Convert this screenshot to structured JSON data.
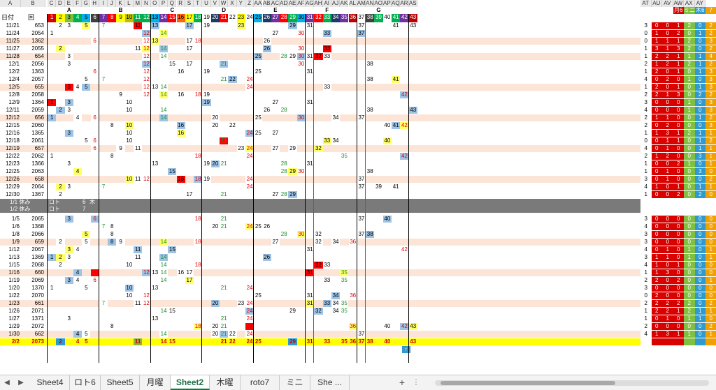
{
  "col_letters": [
    "A",
    "B",
    "C",
    "D",
    "E",
    "F",
    "G",
    "H",
    "I",
    "J",
    "K",
    "L",
    "M",
    "N",
    "O",
    "P",
    "Q",
    "R",
    "S",
    "T",
    "U",
    "V",
    "W",
    "X",
    "Y",
    "Z",
    "AA",
    "AB",
    "AC",
    "AD",
    "AE",
    "AF",
    "AG",
    "AH",
    "AI",
    "AJ",
    "AK",
    "AL",
    "AM",
    "AN",
    "AO",
    "AP",
    "AQ",
    "AR",
    "AS",
    "AT",
    "AU",
    "AV",
    "AW",
    "AX",
    "AY"
  ],
  "group_labels": [
    "A",
    "B",
    "C",
    "D",
    "E",
    "F",
    "G"
  ],
  "right_headers": [
    "月6",
    "ミニ",
    "木6",
    "7"
  ],
  "header_row": {
    "date": "日付",
    "kai": "回"
  },
  "top_numbers": [
    "1",
    "2",
    "3",
    "4",
    "5",
    "6",
    "7",
    "8",
    "9",
    "10",
    "11",
    "12",
    "13",
    "14",
    "15",
    "16",
    "17",
    "18",
    "19",
    "20",
    "21",
    "22",
    "23",
    "24",
    "25",
    "26",
    "27",
    "28",
    "29",
    "30",
    "31",
    "32",
    "33",
    "34",
    "35",
    "36",
    "37",
    "38",
    "39",
    "40",
    "41",
    "42",
    "43"
  ],
  "top_colors": [
    "#d90000",
    "#ffff00",
    "#80c040",
    "#00b050",
    "#00b0f0",
    "#404040",
    "#7030a0",
    "#ff0000",
    "#ffff00",
    "#c0c000",
    "#00b050",
    "#00b050",
    "#00b0f0",
    "#7030a0",
    "#ff0000",
    "#ff6600",
    "#ffff00",
    "#00b050",
    "#ffffff",
    "#1f3864",
    "#ff0000",
    "#ffffff",
    "#ffff00",
    "#ffffff",
    "#00b0f0",
    "#1f3864",
    "#7030a0",
    "#ff0000",
    "#00b050",
    "#00b0f0",
    "#7030a0",
    "#ff0000",
    "#00b050",
    "#1f3864",
    "#7030a0",
    "#c00000",
    "#ffffff",
    "#404040",
    "#00b050",
    "#ffffff",
    "#00b050",
    "#7030a0",
    "#c00000"
  ],
  "rows": [
    {
      "date": "11/21",
      "kai": "653",
      "nums": [
        "2",
        "3",
        "5",
        "7",
        "11",
        "13",
        "17",
        "19",
        "23",
        "29",
        "31",
        "37",
        "41",
        "43"
      ],
      "band": false,
      "totals": [
        "3",
        "0",
        "0",
        "1",
        "2",
        "0",
        "2"
      ]
    },
    {
      "date": "11/24",
      "kai": "2054",
      "nums": [
        "1",
        "12",
        "14",
        "27",
        "30",
        "33",
        "37"
      ],
      "band": false,
      "totals": [
        "0",
        "1",
        "0",
        "2",
        "0",
        "1",
        "2"
      ]
    },
    {
      "date": "11/25",
      "kai": "1362",
      "nums": [
        "6",
        "12",
        "13",
        "17",
        "18",
        "26"
      ],
      "band": true,
      "totals": [
        "0",
        "1",
        "1",
        "1",
        "2",
        "0",
        "3"
      ]
    },
    {
      "date": "11/27",
      "kai": "2055",
      "nums": [
        "2",
        "11",
        "12",
        "14",
        "17",
        "26",
        "30",
        "33"
      ],
      "band": false,
      "totals": [
        "1",
        "3",
        "1",
        "3",
        "2",
        "0",
        "2"
      ]
    },
    {
      "date": "11/28",
      "kai": "654",
      "nums": [
        "3",
        "12",
        "14",
        "25",
        "28",
        "29",
        "30",
        "31",
        "32",
        "33"
      ],
      "band": true,
      "totals": [
        "1",
        "2",
        "2",
        "1",
        "1",
        "1",
        "4"
      ]
    },
    {
      "date": "12/1",
      "kai": "2056",
      "nums": [
        "3",
        "12",
        "15",
        "17",
        "21",
        "30",
        "38"
      ],
      "band": false,
      "totals": [
        "2",
        "1",
        "2",
        "1",
        "2",
        "1",
        "2"
      ]
    },
    {
      "date": "12/2",
      "kai": "1363",
      "nums": [
        "6",
        "12",
        "16",
        "19",
        "25",
        "31"
      ],
      "band": false,
      "totals": [
        "1",
        "2",
        "0",
        "1",
        "0",
        "1",
        "3"
      ]
    },
    {
      "date": "12/4",
      "kai": "2057",
      "nums": [
        "5",
        "7",
        "12",
        "21",
        "22",
        "24",
        "38",
        "41"
      ],
      "band": false,
      "totals": [
        "4",
        "0",
        "2",
        "0",
        "1",
        "0",
        "3"
      ]
    },
    {
      "date": "12/5",
      "kai": "655",
      "nums": [
        "3",
        "4",
        "5",
        "12",
        "13",
        "14",
        "24",
        "33"
      ],
      "band": true,
      "totals": [
        "1",
        "2",
        "0",
        "1",
        "0",
        "1",
        "3"
      ]
    },
    {
      "date": "12/8",
      "kai": "2058",
      "nums": [
        "9",
        "12",
        "14",
        "16",
        "18",
        "19",
        "42"
      ],
      "band": false,
      "totals": [
        "2",
        "2",
        "1",
        "3",
        "0",
        "2",
        "2"
      ]
    },
    {
      "date": "12/9",
      "kai": "1364",
      "nums": [
        "1",
        "3",
        "10",
        "19",
        "27",
        "31"
      ],
      "band": false,
      "totals": [
        "3",
        "0",
        "0",
        "0",
        "1",
        "0",
        "3"
      ]
    },
    {
      "date": "12/11",
      "kai": "2059",
      "nums": [
        "2",
        "3",
        "10",
        "14",
        "26",
        "28",
        "38",
        "43"
      ],
      "band": false,
      "totals": [
        "4",
        "0",
        "0",
        "0",
        "1",
        "0",
        "3"
      ]
    },
    {
      "date": "12/12",
      "kai": "656",
      "nums": [
        "1",
        "4",
        "6",
        "14",
        "20",
        "25",
        "30",
        "34",
        "37"
      ],
      "band": true,
      "totals": [
        "2",
        "1",
        "1",
        "0",
        "0",
        "1",
        "2"
      ]
    },
    {
      "date": "12/15",
      "kai": "2060",
      "nums": [
        "8",
        "10",
        "16",
        "20",
        "22",
        "40",
        "41",
        "42"
      ],
      "band": false,
      "totals": [
        "2",
        "0",
        "2",
        "0",
        "0",
        "0",
        "3"
      ]
    },
    {
      "date": "12/16",
      "kai": "1365",
      "nums": [
        "3",
        "10",
        "16",
        "24",
        "25",
        "27"
      ],
      "band": false,
      "totals": [
        "1",
        "1",
        "3",
        "1",
        "2",
        "1",
        "1"
      ]
    },
    {
      "date": "12/18",
      "kai": "2061",
      "nums": [
        "5",
        "6",
        "10",
        "21",
        "33",
        "34",
        "40"
      ],
      "band": false,
      "totals": [
        "0",
        "0",
        "1",
        "1",
        "0",
        "1",
        "2"
      ]
    },
    {
      "date": "12/19",
      "kai": "657",
      "nums": [
        "6",
        "9",
        "11",
        "23",
        "24",
        "27",
        "29",
        "32"
      ],
      "band": true,
      "totals": [
        "4",
        "0",
        "1",
        "0",
        "0",
        "1",
        "1"
      ]
    },
    {
      "date": "12/22",
      "kai": "2062",
      "nums": [
        "1",
        "8",
        "18",
        "24",
        "35",
        "42"
      ],
      "band": false,
      "totals": [
        "2",
        "1",
        "2",
        "0",
        "0",
        "3",
        "1"
      ]
    },
    {
      "date": "12/23",
      "kai": "1366",
      "nums": [
        "3",
        "13",
        "19",
        "20",
        "21",
        "28",
        "31"
      ],
      "band": false,
      "totals": [
        "1",
        "0",
        "0",
        "2",
        "1",
        "0",
        "1"
      ]
    },
    {
      "date": "12/25",
      "kai": "2063",
      "nums": [
        "4",
        "15",
        "28",
        "29",
        "30",
        "38"
      ],
      "band": false,
      "totals": [
        "1",
        "0",
        "1",
        "0",
        "0",
        "3",
        "0"
      ]
    },
    {
      "date": "12/26",
      "kai": "658",
      "nums": [
        "10",
        "11",
        "12",
        "16",
        "18",
        "19",
        "24",
        "37"
      ],
      "band": true,
      "totals": [
        "3",
        "0",
        "1",
        "0",
        "0",
        "0",
        "2"
      ]
    },
    {
      "date": "12/29",
      "kai": "2064",
      "nums": [
        "2",
        "3",
        "7",
        "24",
        "37",
        "39",
        "41"
      ],
      "band": false,
      "totals": [
        "4",
        "1",
        "0",
        "1",
        "0",
        "1",
        "1"
      ]
    },
    {
      "date": "12/30",
      "kai": "1367",
      "nums": [
        "2",
        "17",
        "21",
        "27",
        "28",
        "29"
      ],
      "band": false,
      "totals": [
        "1",
        "0",
        "0",
        "2",
        "0",
        "2",
        "0"
      ]
    },
    {
      "date": "1/5",
      "kai": "2065",
      "nums": [
        "3",
        "6",
        "18",
        "21",
        "37",
        "40"
      ],
      "band": false,
      "totals": [
        "3",
        "0",
        "0",
        "0",
        "0",
        "0",
        "0"
      ]
    },
    {
      "date": "1/6",
      "kai": "1368",
      "nums": [
        "7",
        "8",
        "20",
        "21",
        "24",
        "25",
        "26"
      ],
      "band": false,
      "totals": [
        "4",
        "0",
        "0",
        "0",
        "0",
        "0",
        "0"
      ]
    },
    {
      "date": "1/8",
      "kai": "2066",
      "nums": [
        "5",
        "8",
        "28",
        "30",
        "32",
        "37",
        "38"
      ],
      "band": false,
      "totals": [
        "3",
        "0",
        "0",
        "0",
        "0",
        "0",
        "0"
      ]
    },
    {
      "date": "1/9",
      "kai": "659",
      "nums": [
        "2",
        "5",
        "8",
        "9",
        "14",
        "18",
        "27",
        "32",
        "34",
        "36"
      ],
      "band": true,
      "totals": [
        "3",
        "0",
        "0",
        "0",
        "0",
        "0",
        "0"
      ]
    },
    {
      "date": "1/12",
      "kai": "2067",
      "nums": [
        "3",
        "4",
        "11",
        "15",
        "31",
        "42"
      ],
      "band": false,
      "totals": [
        "4",
        "0",
        "1",
        "0",
        "1",
        "0",
        "1"
      ]
    },
    {
      "date": "1/13",
      "kai": "1369",
      "nums": [
        "1",
        "2",
        "3",
        "11",
        "14",
        "26"
      ],
      "band": false,
      "totals": [
        "3",
        "1",
        "1",
        "0",
        "1",
        "0",
        "1"
      ]
    },
    {
      "date": "1/15",
      "kai": "2068",
      "nums": [
        "2",
        "10",
        "14",
        "18",
        "32",
        "33"
      ],
      "band": false,
      "totals": [
        "4",
        "1",
        "0",
        "1",
        "0",
        "0",
        "0"
      ]
    },
    {
      "date": "1/16",
      "kai": "660",
      "nums": [
        "4",
        "6",
        "12",
        "13",
        "14",
        "16",
        "17",
        "31",
        "35"
      ],
      "band": true,
      "totals": [
        "1",
        "1",
        "3",
        "0",
        "0",
        "0",
        "0"
      ]
    },
    {
      "date": "1/19",
      "kai": "2069",
      "nums": [
        "3",
        "4",
        "6",
        "14",
        "17",
        "33",
        "35"
      ],
      "band": false,
      "totals": [
        "2",
        "2",
        "0",
        "2",
        "0",
        "0",
        "1"
      ]
    },
    {
      "date": "1/20",
      "kai": "1370",
      "nums": [
        "1",
        "5",
        "10",
        "13",
        "21",
        "24"
      ],
      "band": false,
      "totals": [
        "3",
        "0",
        "0",
        "0",
        "0",
        "0",
        "0"
      ]
    },
    {
      "date": "1/22",
      "kai": "2070",
      "nums": [
        "10",
        "12",
        "25",
        "31",
        "34",
        "36"
      ],
      "band": false,
      "totals": [
        "0",
        "2",
        "0",
        "0",
        "0",
        "0",
        "0"
      ]
    },
    {
      "date": "1/23",
      "kai": "661",
      "nums": [
        "7",
        "11",
        "12",
        "20",
        "23",
        "24",
        "31",
        "33",
        "34",
        "35"
      ],
      "band": true,
      "totals": [
        "2",
        "2",
        "2",
        "2",
        "2",
        "0",
        "2"
      ]
    },
    {
      "date": "1/26",
      "kai": "2071",
      "nums": [
        "14",
        "15",
        "24",
        "29",
        "32",
        "34",
        "35"
      ],
      "band": false,
      "totals": [
        "1",
        "2",
        "2",
        "1",
        "2",
        "1",
        "1"
      ]
    },
    {
      "date": "1/27",
      "kai": "1371",
      "nums": [
        "3",
        "13",
        "21",
        "24"
      ],
      "band": false,
      "totals": [
        "1",
        "0",
        "1",
        "0",
        "1",
        "1",
        "0"
      ]
    },
    {
      "date": "1/29",
      "kai": "2072",
      "nums": [
        "8",
        "18",
        "20",
        "21",
        "24",
        "36",
        "40",
        "42",
        "43"
      ],
      "band": false,
      "totals": [
        "2",
        "0",
        "0",
        "0",
        "0",
        "0",
        "2"
      ]
    },
    {
      "date": "1/30",
      "kai": "662",
      "nums": [
        "4",
        "5",
        "14",
        "20",
        "21",
        "22",
        "24",
        "37"
      ],
      "band": true,
      "totals": [
        "4",
        "1",
        "3",
        "1",
        "1",
        "0",
        "1"
      ]
    },
    {
      "date": "2/2",
      "kai": "2073",
      "nums": [
        "2",
        "4",
        "5",
        "11",
        "14",
        "15",
        "21",
        "22",
        "24",
        "25",
        "29",
        "31",
        "33",
        "35",
        "36",
        "37",
        "38",
        "40",
        "43"
      ],
      "band": false,
      "totals": [
        "",
        "",
        "",
        "",
        "",
        "",
        ""
      ],
      "highlight": true
    }
  ],
  "holiday_rows": [
    {
      "text1": "1/1 休み",
      "text2": "ロト",
      "text3": "6",
      "text4": "木"
    },
    {
      "text1": "1/2 休み",
      "text2": "ロト",
      "text3": "7",
      "text4": ""
    }
  ],
  "tabs": [
    "Sheet4",
    "ロト6",
    "Sheet5",
    "月曜",
    "Sheet2",
    "木曜",
    "roto7",
    "ミニ",
    "She ..."
  ],
  "active_tab": "Sheet2",
  "add_sheet": "+",
  "arrow_mark": "↑"
}
